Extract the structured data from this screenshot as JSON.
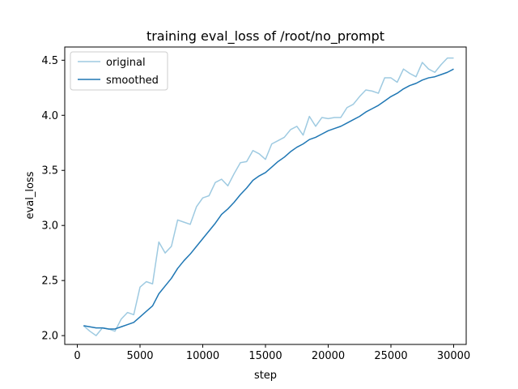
{
  "chart_data": {
    "type": "line",
    "title": "training eval_loss of /root/no_prompt",
    "xlabel": "step",
    "ylabel": "eval_loss",
    "xlim": [
      -1000,
      31000
    ],
    "ylim": [
      1.92,
      4.62
    ],
    "xticks": [
      0,
      5000,
      10000,
      15000,
      20000,
      25000,
      30000
    ],
    "xtick_labels": [
      "0",
      "5000",
      "10000",
      "15000",
      "20000",
      "25000",
      "30000"
    ],
    "yticks": [
      2.0,
      2.5,
      3.0,
      3.5,
      4.0,
      4.5
    ],
    "ytick_labels": [
      "2.0",
      "2.5",
      "3.0",
      "3.5",
      "4.0",
      "4.5"
    ],
    "grid": false,
    "legend_position": "top-left",
    "x": [
      500,
      1000,
      1500,
      2000,
      2500,
      3000,
      3500,
      4000,
      4500,
      5000,
      5500,
      6000,
      6500,
      7000,
      7500,
      8000,
      8500,
      9000,
      9500,
      10000,
      10500,
      11000,
      11500,
      12000,
      12500,
      13000,
      13500,
      14000,
      14500,
      15000,
      15500,
      16000,
      16500,
      17000,
      17500,
      18000,
      18500,
      19000,
      19500,
      20000,
      20500,
      21000,
      21500,
      22000,
      22500,
      23000,
      23500,
      24000,
      24500,
      25000,
      25500,
      26000,
      26500,
      27000,
      27500,
      28000,
      28500,
      29000,
      29500,
      30000
    ],
    "series": [
      {
        "name": "original",
        "color": "#9ecae1",
        "values": [
          2.09,
          2.04,
          2.0,
          2.07,
          2.06,
          2.04,
          2.15,
          2.21,
          2.19,
          2.44,
          2.49,
          2.47,
          2.85,
          2.75,
          2.81,
          3.05,
          3.03,
          3.01,
          3.17,
          3.25,
          3.27,
          3.39,
          3.42,
          3.36,
          3.47,
          3.57,
          3.58,
          3.68,
          3.65,
          3.6,
          3.74,
          3.77,
          3.8,
          3.87,
          3.9,
          3.82,
          3.99,
          3.9,
          3.98,
          3.97,
          3.98,
          3.98,
          4.07,
          4.1,
          4.17,
          4.23,
          4.22,
          4.2,
          4.34,
          4.34,
          4.3,
          4.42,
          4.38,
          4.35,
          4.48,
          4.42,
          4.39,
          4.46,
          4.52,
          4.52
        ]
      },
      {
        "name": "smoothed",
        "color": "#1f77b4",
        "values": [
          2.09,
          2.08,
          2.07,
          2.07,
          2.06,
          2.06,
          2.08,
          2.1,
          2.12,
          2.17,
          2.22,
          2.27,
          2.38,
          2.45,
          2.52,
          2.61,
          2.68,
          2.74,
          2.81,
          2.88,
          2.95,
          3.02,
          3.1,
          3.15,
          3.21,
          3.28,
          3.34,
          3.41,
          3.45,
          3.48,
          3.53,
          3.58,
          3.62,
          3.67,
          3.71,
          3.74,
          3.78,
          3.8,
          3.83,
          3.86,
          3.88,
          3.9,
          3.93,
          3.96,
          3.99,
          4.03,
          4.06,
          4.09,
          4.13,
          4.17,
          4.2,
          4.24,
          4.27,
          4.29,
          4.32,
          4.34,
          4.35,
          4.37,
          4.39,
          4.42
        ]
      }
    ]
  }
}
